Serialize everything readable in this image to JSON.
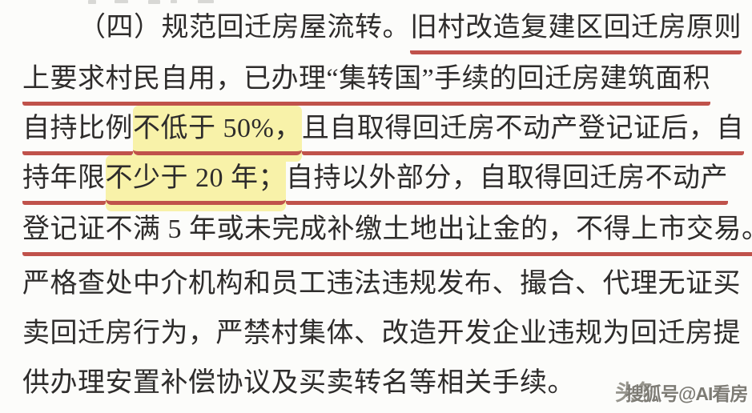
{
  "page": {
    "background": "#fcfcfa",
    "text_color": "#2e2c2b",
    "underline_color": "#c0524b",
    "highlight_color": "#f8f2a9"
  },
  "document": {
    "lines": [
      {
        "indent": true,
        "segments": [
          {
            "text": "（四）规范回迁房屋流转。",
            "underline": false,
            "highlight": false
          },
          {
            "text": "旧村改造复建区回迁房原则",
            "underline": true,
            "highlight": false
          }
        ]
      },
      {
        "segments": [
          {
            "text": "上要求村民自用，已办理“集转国”手续的回迁房建筑面积",
            "underline": true,
            "highlight": false
          }
        ]
      },
      {
        "segments": [
          {
            "text": "自持比例",
            "underline": true,
            "highlight": false
          },
          {
            "text": "不低于 50%，",
            "underline": true,
            "highlight": true
          },
          {
            "text": "且自取得回迁房不动产登记证后，自",
            "underline": true,
            "highlight": false
          }
        ]
      },
      {
        "segments": [
          {
            "text": "持年限",
            "underline": true,
            "highlight": false
          },
          {
            "text": "不少于 20 年；",
            "underline": true,
            "highlight": true
          },
          {
            "text": "自持以外部分，自取得回迁房不动产",
            "underline": true,
            "highlight": false
          }
        ]
      },
      {
        "segments": [
          {
            "text": "登记证不满 5 年或未完成补缴土地出让金的，不得上市交易。",
            "underline": true,
            "highlight": false
          }
        ]
      },
      {
        "segments": [
          {
            "text": "严格查处中介机构和员工违法违规发布、撮合、代理无证买",
            "underline": false,
            "highlight": false
          }
        ]
      },
      {
        "segments": [
          {
            "text": "卖回迁房行为，严禁村集体、改造开发企业违规为回迁房提",
            "underline": false,
            "highlight": false
          }
        ]
      },
      {
        "segments": [
          {
            "text": "供办理安置补偿协议及买卖转名等相关手续。",
            "underline": false,
            "highlight": false
          }
        ]
      }
    ]
  },
  "watermark": {
    "back": "头条",
    "front": "搜狐号@AI看房"
  }
}
